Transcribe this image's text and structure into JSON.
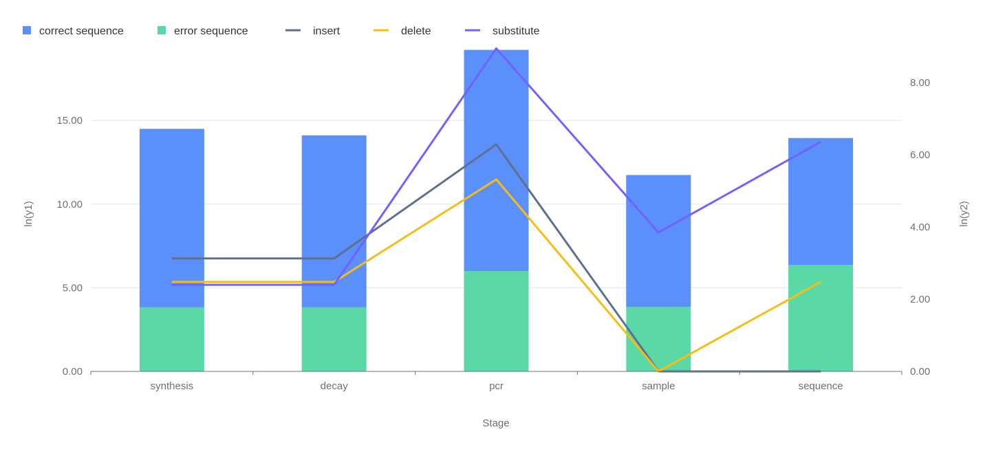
{
  "chart_data": {
    "type": "bar",
    "title": "",
    "categories": [
      "synthesis",
      "decay",
      "pcr",
      "sample",
      "sequence"
    ],
    "xlabel": "Stage",
    "ylabel_left": "ln(y1)",
    "ylabel_right": "ln(y2)",
    "ylim_left": [
      0,
      19.2
    ],
    "ylim_right": [
      0,
      8.9
    ],
    "yticks_left": [
      "0.00",
      "5.00",
      "10.00",
      "15.00"
    ],
    "yticks_right": [
      "0.00",
      "2.00",
      "4.00",
      "6.00",
      "8.00"
    ],
    "grid": true,
    "legend_position": "top-left",
    "bars_stacked": true,
    "bar_series": [
      {
        "name": "correct sequence",
        "axis": "left",
        "color": "#5b8ff9",
        "values": [
          10.67,
          10.28,
          13.22,
          7.89,
          7.59
        ]
      },
      {
        "name": "error sequence",
        "axis": "left",
        "color": "#5ad8a6",
        "values": [
          3.83,
          3.83,
          6.0,
          3.85,
          6.36
        ]
      }
    ],
    "line_series": [
      {
        "name": "insert",
        "axis": "right",
        "color": "#5d7092",
        "values": [
          3.13,
          3.13,
          6.29,
          0.0,
          0.0
        ]
      },
      {
        "name": "delete",
        "axis": "right",
        "color": "#f6bd16",
        "values": [
          2.48,
          2.48,
          5.32,
          0.0,
          2.48
        ]
      },
      {
        "name": "substitute",
        "axis": "right",
        "color": "#7262fd",
        "values": [
          2.4,
          2.4,
          8.95,
          3.85,
          6.36
        ]
      }
    ]
  }
}
